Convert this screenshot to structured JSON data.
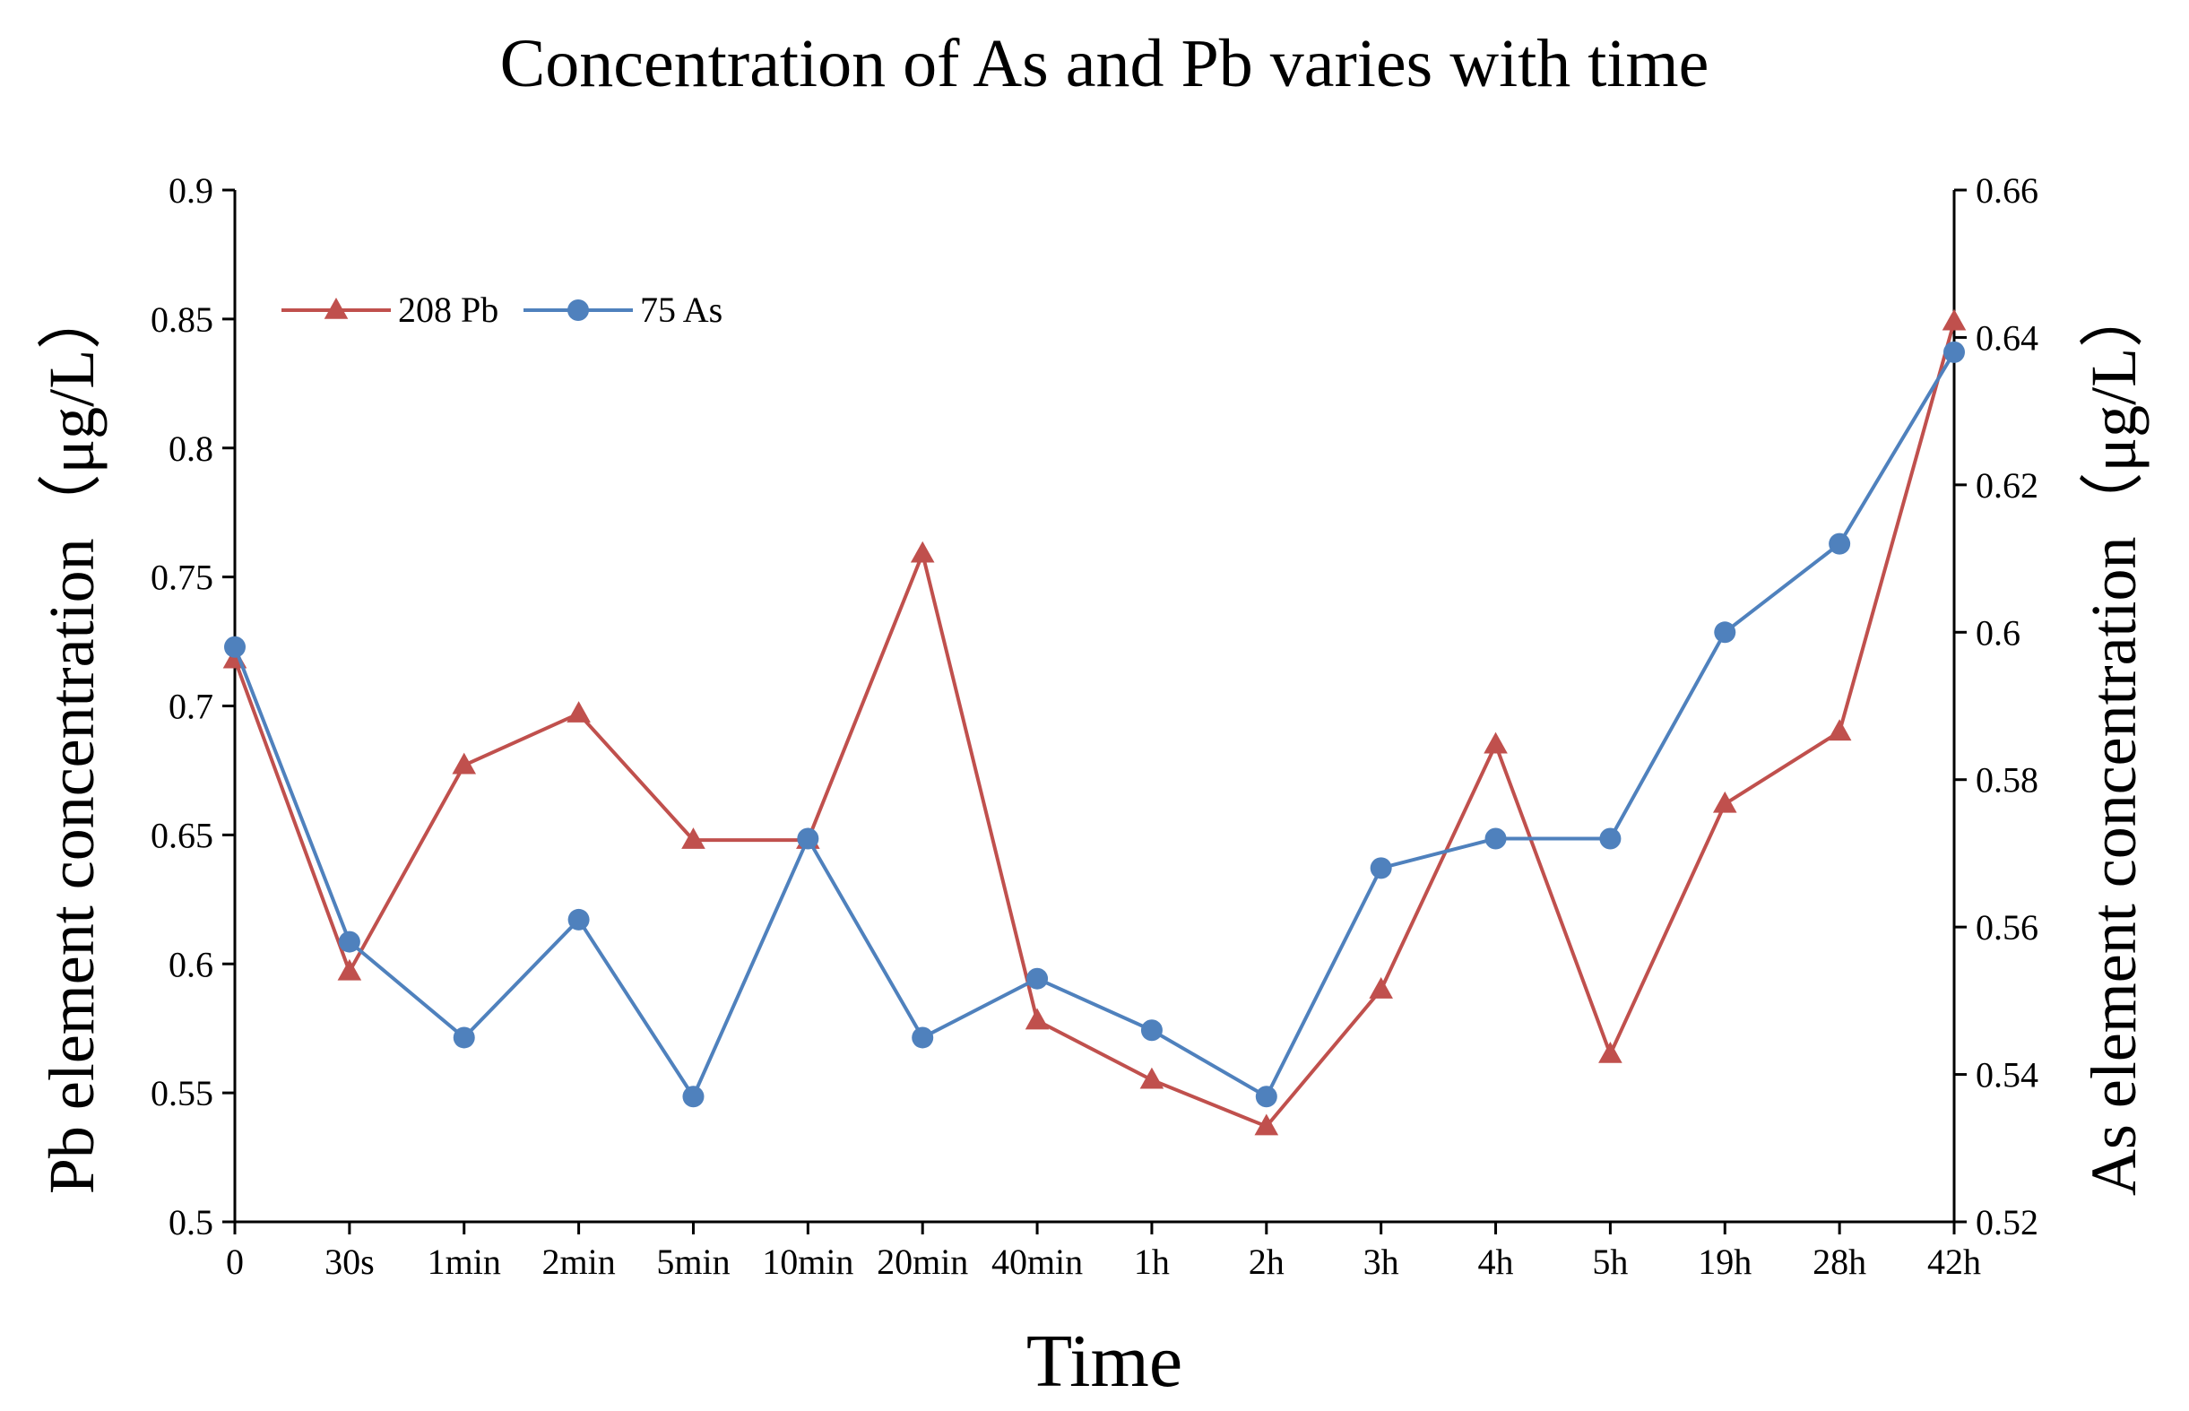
{
  "chart_data": {
    "type": "line",
    "title": "Concentration of As and Pb varies with time",
    "xlabel": "Time",
    "ylabel_left": "Pb element concentration（μg/L）",
    "ylabel_right": "As element concentration（μg/L）",
    "categories": [
      "0",
      "30s",
      "1min",
      "2min",
      "5min",
      "10min",
      "20min",
      "40min",
      "1h",
      "2h",
      "3h",
      "4h",
      "5h",
      "19h",
      "28h",
      "42h"
    ],
    "y_left": {
      "min": 0.5,
      "max": 0.9,
      "ticks": [
        "0.5",
        "0.55",
        "0.6",
        "0.65",
        "0.7",
        "0.75",
        "0.8",
        "0.85",
        "0.9"
      ],
      "tick_values": [
        0.5,
        0.55,
        0.6,
        0.65,
        0.7,
        0.75,
        0.8,
        0.85,
        0.9
      ]
    },
    "y_right": {
      "min": 0.52,
      "max": 0.66,
      "ticks": [
        "0.52",
        "0.54",
        "0.56",
        "0.58",
        "0.6",
        "0.62",
        "0.64",
        "0.66"
      ],
      "tick_values": [
        0.52,
        0.54,
        0.56,
        0.58,
        0.6,
        0.62,
        0.64,
        0.66
      ]
    },
    "series": [
      {
        "name": "208 Pb",
        "axis": "left",
        "marker": "triangle",
        "color": "#c0504d",
        "values": [
          0.718,
          0.597,
          0.677,
          0.697,
          0.648,
          0.648,
          0.759,
          0.578,
          0.555,
          0.537,
          0.59,
          0.685,
          0.565,
          0.662,
          0.69,
          0.849
        ]
      },
      {
        "name": "75 As",
        "axis": "right",
        "marker": "circle",
        "color": "#4f81bd",
        "values": [
          0.598,
          0.558,
          0.545,
          0.561,
          0.537,
          0.572,
          0.545,
          0.553,
          0.546,
          0.537,
          0.568,
          0.572,
          0.572,
          0.6,
          0.612,
          0.638
        ]
      }
    ],
    "legend": {
      "position": "top-left"
    },
    "grid": false
  }
}
